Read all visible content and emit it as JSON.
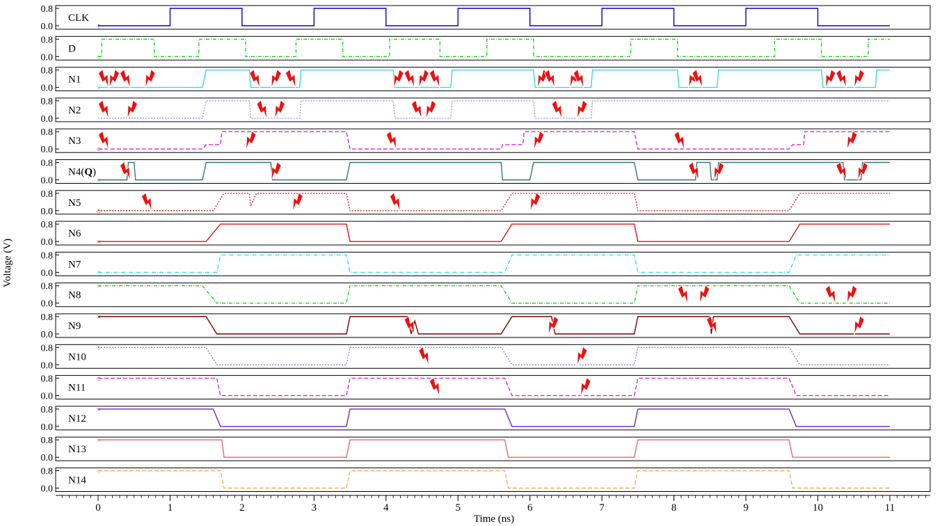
{
  "chart_data": {
    "type": "line",
    "xlabel": "Time (ns)",
    "ylabel": "Voltage (V)",
    "xlim": [
      -0.55,
      11.55
    ],
    "x_ticks": [
      "0",
      "1",
      "2",
      "3",
      "4",
      "5",
      "6",
      "7",
      "8",
      "9",
      "10",
      "11"
    ],
    "y_ticks": [
      "0.8",
      "0.0"
    ],
    "grid": false,
    "t_end": 11,
    "series": [
      {
        "name": "CLK",
        "color": "#0000cc",
        "dash": "",
        "marker": "↑",
        "points": [
          [
            0,
            0
          ],
          [
            1,
            0
          ],
          [
            1,
            0.8
          ],
          [
            2,
            0.8
          ],
          [
            2,
            0
          ],
          [
            3,
            0
          ],
          [
            3,
            0.8
          ],
          [
            4,
            0.8
          ],
          [
            4,
            0
          ],
          [
            5,
            0
          ],
          [
            5,
            0.8
          ],
          [
            6,
            0.8
          ],
          [
            6,
            0
          ],
          [
            7,
            0
          ],
          [
            7,
            0.8
          ],
          [
            8,
            0.8
          ],
          [
            8,
            0
          ],
          [
            9,
            0
          ],
          [
            9,
            0.8
          ],
          [
            10,
            0.8
          ],
          [
            10,
            0
          ],
          [
            11,
            0
          ]
        ],
        "glitch_times": []
      },
      {
        "name": "D",
        "color": "#22cc22",
        "dash": "5,2,1,2",
        "marker": "○",
        "points": [
          [
            0,
            0
          ],
          [
            0.05,
            0
          ],
          [
            0.05,
            0.8
          ],
          [
            0.78,
            0.8
          ],
          [
            0.78,
            0
          ],
          [
            1.4,
            0
          ],
          [
            1.4,
            0.8
          ],
          [
            2.05,
            0.8
          ],
          [
            2.05,
            0
          ],
          [
            2.75,
            0
          ],
          [
            2.75,
            0.8
          ],
          [
            3.4,
            0.8
          ],
          [
            3.4,
            0
          ],
          [
            4.05,
            0
          ],
          [
            4.05,
            0.8
          ],
          [
            4.75,
            0.8
          ],
          [
            4.75,
            0
          ],
          [
            5.4,
            0
          ],
          [
            5.4,
            0.8
          ],
          [
            6.05,
            0.8
          ],
          [
            6.05,
            0
          ],
          [
            7.4,
            0
          ],
          [
            7.4,
            0.8
          ],
          [
            8.05,
            0.8
          ],
          [
            8.05,
            0
          ],
          [
            9.4,
            0
          ],
          [
            9.4,
            0.8
          ],
          [
            10.05,
            0.8
          ],
          [
            10.05,
            0
          ],
          [
            10.7,
            0
          ],
          [
            10.7,
            0.8
          ],
          [
            11,
            0.8
          ]
        ],
        "glitch_times": []
      },
      {
        "name": "N1",
        "color": "#33dddd",
        "dash": "",
        "marker": "×",
        "points": [
          [
            0,
            0
          ],
          [
            1.45,
            0
          ],
          [
            1.5,
            0.8
          ],
          [
            2.1,
            0.8
          ],
          [
            2.12,
            0
          ],
          [
            2.8,
            0
          ],
          [
            2.82,
            0.8
          ],
          [
            4.1,
            0.8
          ],
          [
            4.12,
            0
          ],
          [
            4.9,
            0
          ],
          [
            4.92,
            0.8
          ],
          [
            6.05,
            0.8
          ],
          [
            6.07,
            0
          ],
          [
            6.85,
            0
          ],
          [
            6.87,
            0.8
          ],
          [
            8.05,
            0.8
          ],
          [
            8.07,
            0
          ],
          [
            8.6,
            0
          ],
          [
            8.62,
            0.8
          ],
          [
            10.05,
            0.8
          ],
          [
            10.07,
            0
          ],
          [
            10.8,
            0
          ],
          [
            10.82,
            0.8
          ],
          [
            11,
            0.8
          ]
        ],
        "glitch_times": [
          0.1,
          0.2,
          0.4,
          0.7,
          2.2,
          2.45,
          2.7,
          4.15,
          4.35,
          4.5,
          4.7,
          6.15,
          6.3,
          6.6,
          6.7,
          8.25,
          8.35,
          10.15,
          10.35,
          10.55
        ]
      },
      {
        "name": "N2",
        "color": "#9999ee",
        "dash": "2,2",
        "marker": "",
        "points": [
          [
            0,
            0
          ],
          [
            1.45,
            0
          ],
          [
            1.5,
            0.8
          ],
          [
            2.1,
            0.8
          ],
          [
            2.12,
            0
          ],
          [
            2.8,
            0
          ],
          [
            2.82,
            0.8
          ],
          [
            4.1,
            0.8
          ],
          [
            4.12,
            0
          ],
          [
            4.9,
            0
          ],
          [
            4.92,
            0.8
          ],
          [
            6.05,
            0.8
          ],
          [
            6.07,
            0
          ],
          [
            6.85,
            0
          ],
          [
            6.87,
            0.8
          ],
          [
            9.6,
            0.8
          ],
          [
            9.65,
            0.8
          ],
          [
            11,
            0.8
          ]
        ],
        "glitch_times": [
          0.1,
          0.45,
          2.3,
          2.5,
          4.45,
          4.6,
          6.4,
          6.7
        ]
      },
      {
        "name": "N3",
        "color": "#dd22dd",
        "dash": "6,3",
        "marker": "○",
        "points": [
          [
            0,
            0
          ],
          [
            1.45,
            0
          ],
          [
            1.5,
            0.2
          ],
          [
            1.7,
            0.2
          ],
          [
            1.72,
            0.8
          ],
          [
            3.45,
            0.8
          ],
          [
            3.5,
            0
          ],
          [
            5.6,
            0
          ],
          [
            5.62,
            0.2
          ],
          [
            5.9,
            0.2
          ],
          [
            5.92,
            0.8
          ],
          [
            7.45,
            0.8
          ],
          [
            7.5,
            0
          ],
          [
            9.6,
            0
          ],
          [
            9.65,
            0.2
          ],
          [
            9.8,
            0.2
          ],
          [
            9.82,
            0.8
          ],
          [
            11,
            0.8
          ]
        ],
        "glitch_times": [
          0.1,
          2.1,
          4.1,
          6.1,
          8.1,
          10.45
        ]
      },
      {
        "name": "N4(Q)",
        "color": "#337777",
        "dash": "",
        "marker": "×",
        "points": [
          [
            0,
            0
          ],
          [
            0.4,
            0
          ],
          [
            0.42,
            0.8
          ],
          [
            0.5,
            0.8
          ],
          [
            0.52,
            0
          ],
          [
            1.45,
            0
          ],
          [
            1.5,
            0.8
          ],
          [
            2.4,
            0.8
          ],
          [
            2.42,
            0
          ],
          [
            3.45,
            0
          ],
          [
            3.5,
            0.8
          ],
          [
            5.6,
            0.8
          ],
          [
            5.62,
            0
          ],
          [
            6.0,
            0
          ],
          [
            6.05,
            0.8
          ],
          [
            7.45,
            0.8
          ],
          [
            7.5,
            0
          ],
          [
            8.3,
            0
          ],
          [
            8.32,
            0.8
          ],
          [
            8.5,
            0.8
          ],
          [
            8.52,
            0
          ],
          [
            8.6,
            0
          ],
          [
            8.62,
            0.8
          ],
          [
            9.6,
            0.8
          ],
          [
            9.65,
            0.8
          ],
          [
            10.35,
            0.8
          ],
          [
            10.37,
            0
          ],
          [
            10.6,
            0
          ],
          [
            10.62,
            0.8
          ],
          [
            11,
            0.8
          ]
        ],
        "glitch_times": [
          0.4,
          2.45,
          8.3,
          8.6,
          10.35,
          10.6
        ]
      },
      {
        "name": "N5",
        "color": "#ee2222",
        "dash": "2,2",
        "marker": "○",
        "points": [
          [
            0,
            0
          ],
          [
            1.6,
            0
          ],
          [
            1.75,
            0.8
          ],
          [
            2.1,
            0.8
          ],
          [
            2.12,
            0.2
          ],
          [
            2.2,
            0.8
          ],
          [
            3.45,
            0.8
          ],
          [
            3.5,
            0
          ],
          [
            5.6,
            0
          ],
          [
            5.75,
            0.8
          ],
          [
            7.45,
            0.8
          ],
          [
            7.5,
            0
          ],
          [
            9.6,
            0
          ],
          [
            9.75,
            0.8
          ],
          [
            11,
            0.8
          ]
        ],
        "glitch_times": [
          0.7,
          2.75,
          4.15,
          6.05
        ]
      },
      {
        "name": "N6",
        "color": "#dd1111",
        "dash": "",
        "marker": "×",
        "points": [
          [
            0,
            0
          ],
          [
            1.5,
            0
          ],
          [
            1.7,
            0.8
          ],
          [
            3.45,
            0.8
          ],
          [
            3.5,
            0
          ],
          [
            5.6,
            0
          ],
          [
            5.75,
            0.8
          ],
          [
            7.45,
            0.8
          ],
          [
            7.5,
            0
          ],
          [
            9.6,
            0
          ],
          [
            9.75,
            0.8
          ],
          [
            11,
            0.8
          ]
        ],
        "glitch_times": []
      },
      {
        "name": "N7",
        "color": "#33dddd",
        "dash": "6,2,1,2",
        "marker": "○",
        "points": [
          [
            0,
            0
          ],
          [
            1.65,
            0
          ],
          [
            1.7,
            0.8
          ],
          [
            3.45,
            0.8
          ],
          [
            3.5,
            0
          ],
          [
            5.65,
            0
          ],
          [
            5.75,
            0.8
          ],
          [
            7.45,
            0.8
          ],
          [
            7.5,
            0
          ],
          [
            9.6,
            0
          ],
          [
            9.7,
            0.8
          ],
          [
            11,
            0.8
          ]
        ],
        "glitch_times": []
      },
      {
        "name": "N8",
        "color": "#22cc22",
        "dash": "5,2,1,2",
        "marker": "×",
        "points": [
          [
            0,
            0.8
          ],
          [
            1.45,
            0.8
          ],
          [
            1.65,
            0
          ],
          [
            3.45,
            0
          ],
          [
            3.5,
            0.8
          ],
          [
            5.6,
            0.8
          ],
          [
            5.75,
            0
          ],
          [
            7.45,
            0
          ],
          [
            7.5,
            0.8
          ],
          [
            9.6,
            0.8
          ],
          [
            9.75,
            0
          ],
          [
            11,
            0
          ]
        ],
        "glitch_times": [
          8.15,
          8.4,
          10.2,
          10.45
        ]
      },
      {
        "name": "N9",
        "color": "#770000",
        "dash": "",
        "marker": "×",
        "points": [
          [
            0,
            0.8
          ],
          [
            1.5,
            0.8
          ],
          [
            1.65,
            0
          ],
          [
            3.45,
            0
          ],
          [
            3.5,
            0.8
          ],
          [
            4.3,
            0.8
          ],
          [
            4.35,
            0
          ],
          [
            4.4,
            0.6
          ],
          [
            4.45,
            0
          ],
          [
            5.6,
            0
          ],
          [
            5.75,
            0.8
          ],
          [
            6.3,
            0.8
          ],
          [
            6.35,
            0
          ],
          [
            7.45,
            0
          ],
          [
            7.5,
            0.8
          ],
          [
            8.5,
            0.8
          ],
          [
            8.52,
            0
          ],
          [
            8.55,
            0.8
          ],
          [
            9.6,
            0.8
          ],
          [
            9.75,
            0
          ],
          [
            11,
            0
          ]
        ],
        "glitch_times": [
          4.35,
          6.3,
          8.55,
          10.55
        ]
      },
      {
        "name": "N10",
        "color": "#8888dd",
        "dash": "2,2",
        "marker": "○",
        "points": [
          [
            0,
            0.8
          ],
          [
            1.5,
            0.8
          ],
          [
            1.65,
            0
          ],
          [
            3.45,
            0
          ],
          [
            3.5,
            0.8
          ],
          [
            5.6,
            0.8
          ],
          [
            5.75,
            0
          ],
          [
            7.45,
            0
          ],
          [
            7.5,
            0.8
          ],
          [
            9.6,
            0.8
          ],
          [
            9.75,
            0
          ],
          [
            11,
            0
          ]
        ],
        "glitch_times": [
          4.55,
          6.7
        ]
      },
      {
        "name": "N11",
        "color": "#dd22dd",
        "dash": "6,3",
        "marker": "○",
        "points": [
          [
            0,
            0.8
          ],
          [
            1.65,
            0.8
          ],
          [
            1.7,
            0
          ],
          [
            3.45,
            0
          ],
          [
            3.5,
            0.8
          ],
          [
            5.65,
            0.8
          ],
          [
            5.75,
            0
          ],
          [
            7.45,
            0
          ],
          [
            7.5,
            0.8
          ],
          [
            9.6,
            0.8
          ],
          [
            9.7,
            0
          ],
          [
            11,
            0
          ]
        ],
        "glitch_times": [
          4.7,
          6.75
        ]
      },
      {
        "name": "N12",
        "color": "#6622dd",
        "dash": "",
        "marker": "×",
        "points": [
          [
            0,
            0.8
          ],
          [
            1.6,
            0.8
          ],
          [
            1.7,
            0
          ],
          [
            3.45,
            0
          ],
          [
            3.5,
            0.8
          ],
          [
            5.65,
            0.8
          ],
          [
            5.75,
            0
          ],
          [
            7.45,
            0
          ],
          [
            7.5,
            0.8
          ],
          [
            9.6,
            0.8
          ],
          [
            9.7,
            0
          ],
          [
            11,
            0
          ]
        ],
        "glitch_times": []
      },
      {
        "name": "N13",
        "color": "#ee6666",
        "dash": "",
        "marker": "×",
        "points": [
          [
            0,
            0.8
          ],
          [
            1.72,
            0.8
          ],
          [
            1.75,
            0
          ],
          [
            3.45,
            0
          ],
          [
            3.5,
            0.8
          ],
          [
            5.65,
            0.8
          ],
          [
            5.7,
            0
          ],
          [
            7.45,
            0
          ],
          [
            7.5,
            0.8
          ],
          [
            9.6,
            0.8
          ],
          [
            9.65,
            0
          ],
          [
            11,
            0
          ]
        ],
        "glitch_times": []
      },
      {
        "name": "N14",
        "color": "#ffaa55",
        "dash": "6,3",
        "marker": "○",
        "points": [
          [
            0,
            0.8
          ],
          [
            1.7,
            0.8
          ],
          [
            1.75,
            0
          ],
          [
            3.45,
            0
          ],
          [
            3.5,
            0.8
          ],
          [
            5.65,
            0.8
          ],
          [
            5.7,
            0
          ],
          [
            7.45,
            0
          ],
          [
            7.5,
            0.8
          ],
          [
            9.6,
            0.8
          ],
          [
            9.65,
            0
          ],
          [
            11,
            0
          ]
        ],
        "glitch_times": []
      }
    ]
  }
}
